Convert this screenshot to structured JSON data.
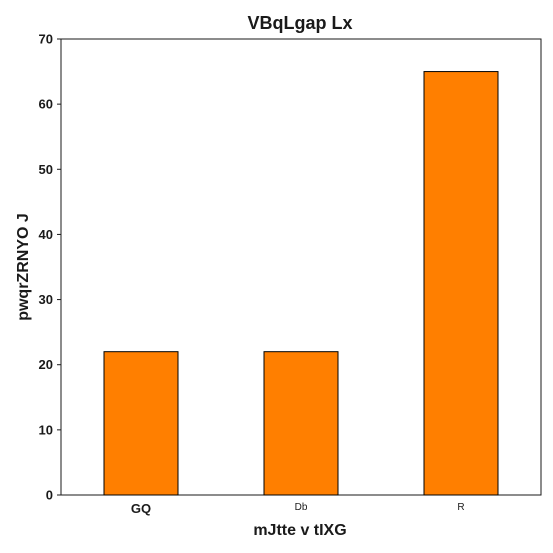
{
  "chart_data": {
    "type": "bar",
    "title": "VBqLgap Lx",
    "xlabel": "mJtte v tIXG",
    "ylabel": "pwqrZRNYO J",
    "categories": [
      "GQ",
      "Db",
      "R"
    ],
    "values": [
      22,
      22,
      65
    ],
    "ylim": [
      0,
      70
    ],
    "yticks": [
      0,
      10,
      20,
      30,
      40,
      50,
      60,
      70
    ],
    "bar_color": "#ff7f00",
    "edge_color": "#000000",
    "grid": false
  }
}
